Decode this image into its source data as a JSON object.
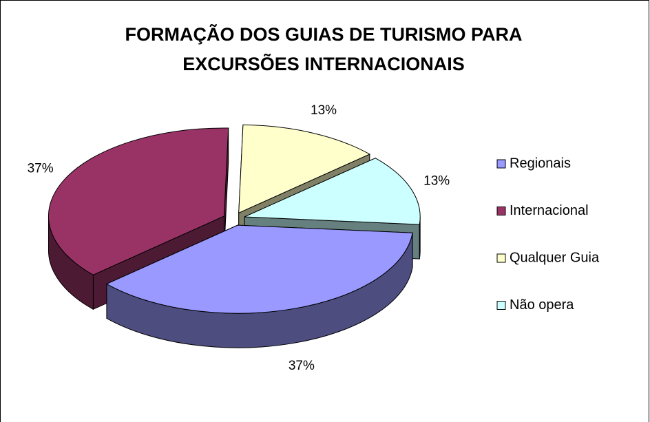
{
  "chart_data": {
    "type": "pie3d",
    "title": [
      "FORMAÇÃO DOS GUIAS DE TURISMO PARA",
      "EXCURSÕES INTERNACIONAIS"
    ],
    "categories": [
      "Regionais",
      "Internacional",
      "Qualquer Guia",
      "Não opera"
    ],
    "values": [
      37,
      37,
      13,
      13
    ],
    "value_labels": [
      "37%",
      "37%",
      "13%",
      "13%"
    ],
    "colors": [
      "#9999ff",
      "#993366",
      "#ffffcc",
      "#ccffff"
    ],
    "legend": "right"
  }
}
